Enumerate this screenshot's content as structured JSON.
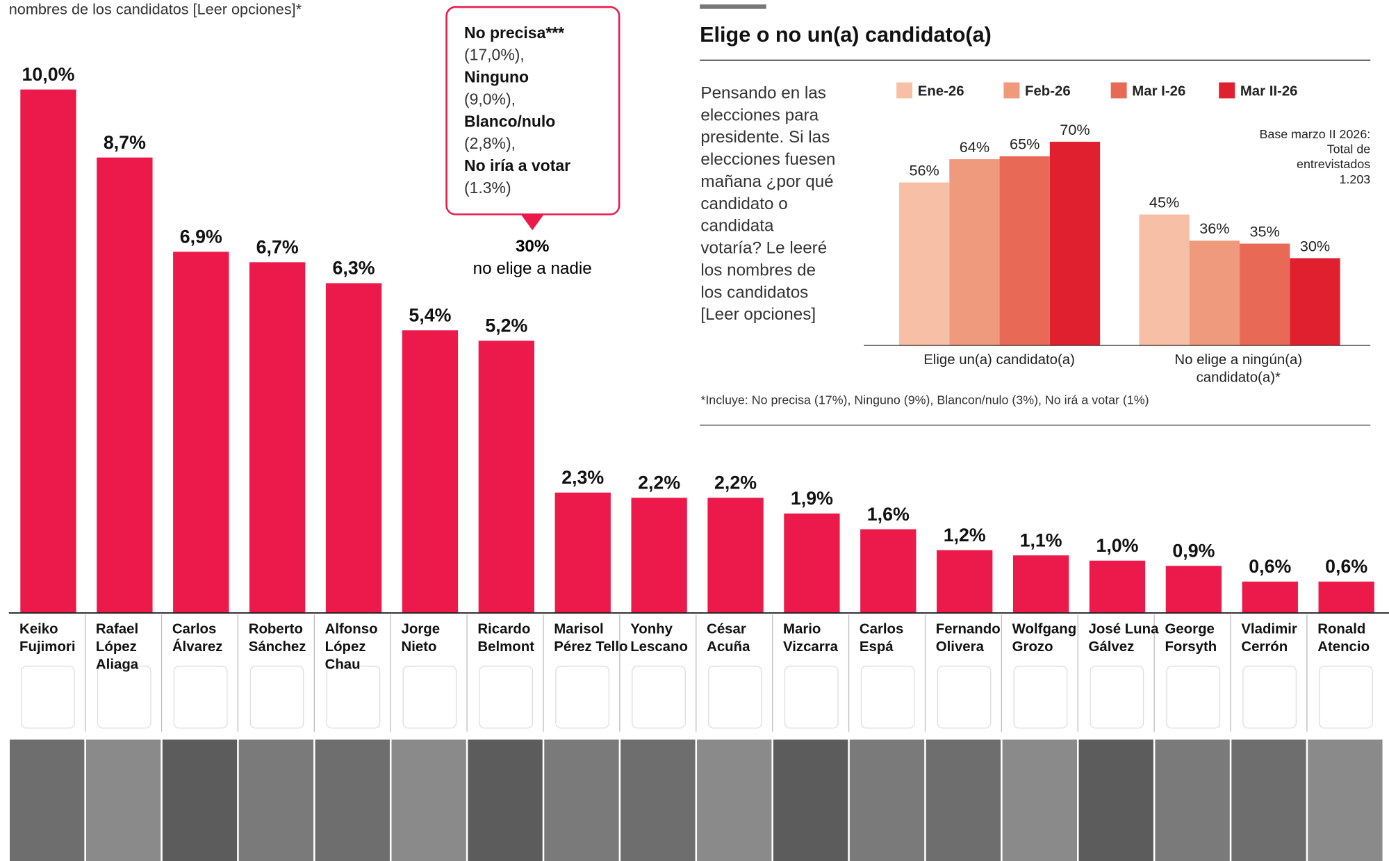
{
  "chart_data": [
    {
      "type": "bar",
      "subtitle": "nombres de los candidatos [Leer opciones]*",
      "categories": [
        "Keiko\nFujimori",
        "Rafael\nLópez\nAliaga",
        "Carlos\nÁlvarez",
        "Roberto\nSánchez",
        "Alfonso\nLópez\nChau",
        "Jorge\nNieto",
        "Ricardo\nBelmont",
        "Marisol\nPérez Tello",
        "Yonhy\nLescano",
        "César\nAcuña",
        "Mario\nVizcarra",
        "Carlos\nEspá",
        "Fernando\nOlivera",
        "Wolfgang\nGrozo",
        "José Luna\nGálvez",
        "George\nForsyth",
        "Vladimir\nCerrón",
        "Ronald\nAtencio"
      ],
      "values": [
        10.0,
        8.7,
        6.9,
        6.7,
        6.3,
        5.4,
        5.2,
        2.3,
        2.2,
        2.2,
        1.9,
        1.6,
        1.2,
        1.1,
        1.0,
        0.9,
        0.6,
        0.6
      ],
      "value_labels": [
        "10,0%",
        "8,7%",
        "6,9%",
        "6,7%",
        "6,3%",
        "5,4%",
        "5,2%",
        "2,3%",
        "2,2%",
        "2,2%",
        "1,9%",
        "1,6%",
        "1,2%",
        "1,1%",
        "1,0%",
        "0,9%",
        "0,6%",
        "0,6%"
      ],
      "color": "#ec1a4b",
      "ylim": [
        0,
        10
      ],
      "annotation": {
        "items": [
          [
            "No precisa***",
            "(17,0%),"
          ],
          [
            "Ninguno",
            "(9,0%),"
          ],
          [
            "Blanco/nulo",
            "(2,8%),"
          ],
          [
            "No iría a votar",
            "(1.3%)"
          ]
        ],
        "total": "30%",
        "total_text": "no elige a nadie"
      }
    },
    {
      "type": "grouped_bar",
      "title": "Elige o no un(a) candidato(a)",
      "question": "Pensando en las\nelecciones para\npresidente. Si las\nelecciones fuesen\nmañana ¿por qué\ncandidato o\ncandidata\nvotaría? Le leeré\nlos nombres de\nlos candidatos\n[Leer opciones]",
      "note": "Base marzo II 2026:\nTotal de\nentrevistados\n1.203",
      "footnote": "*Incluye: No precisa (17%), Ninguno (9%), Blancon/nulo (3%), No irá a votar (1%)",
      "categories": [
        "Elige un(a) candidato(a)",
        "No elige a ningún(a)\ncandidato(a)*"
      ],
      "series": [
        {
          "name": "Ene-26",
          "color": "#f7bfa5",
          "values": [
            56,
            45
          ],
          "value_labels": [
            "56%",
            "45%"
          ]
        },
        {
          "name": "Feb-26",
          "color": "#ef9a7c",
          "values": [
            64,
            36
          ],
          "value_labels": [
            "64%",
            "36%"
          ]
        },
        {
          "name": "Mar I-26",
          "color": "#e86a56",
          "values": [
            65,
            35
          ],
          "value_labels": [
            "65%",
            "35%"
          ]
        },
        {
          "name": "Mar II-26",
          "color": "#e0202f",
          "values": [
            70,
            30
          ],
          "value_labels": [
            "70%",
            "30%"
          ]
        }
      ],
      "ylim": [
        0,
        70
      ]
    }
  ]
}
